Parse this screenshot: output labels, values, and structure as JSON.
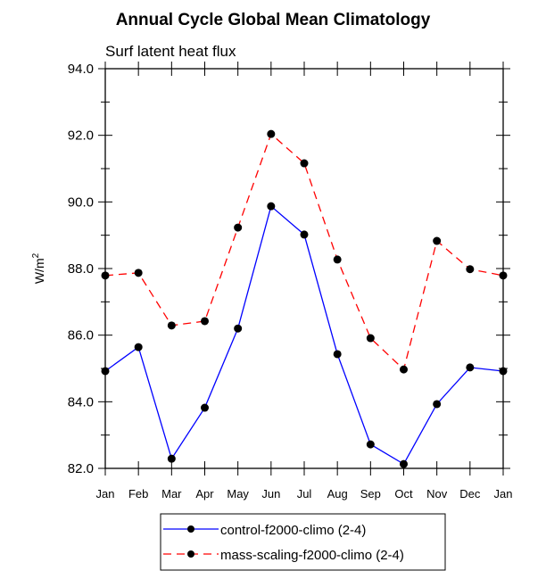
{
  "chart_data": {
    "type": "line",
    "title": "Annual Cycle Global Mean Climatology",
    "subtitle": "Surf latent heat flux",
    "xlabel": "",
    "ylabel": "W/m",
    "ylabel_superscript": "2",
    "categories": [
      "Jan",
      "Feb",
      "Mar",
      "Apr",
      "May",
      "Jun",
      "Jul",
      "Aug",
      "Sep",
      "Oct",
      "Nov",
      "Dec",
      "Jan"
    ],
    "ylim": [
      82.0,
      94.0
    ],
    "yticks": [
      "82.0",
      "84.0",
      "86.0",
      "88.0",
      "90.0",
      "92.0",
      "94.0"
    ],
    "ytick_values": [
      82,
      84,
      86,
      88,
      90,
      92,
      94
    ],
    "grid": false,
    "legend_position": "bottom-center",
    "series": [
      {
        "name": "control-f2000-climo (2-4)",
        "color": "#0000ff",
        "linestyle": "solid",
        "marker": "circle",
        "values": [
          84.92,
          85.64,
          82.29,
          83.82,
          86.2,
          89.87,
          89.02,
          85.43,
          82.72,
          82.13,
          83.93,
          85.03,
          84.92
        ]
      },
      {
        "name": "mass-scaling-f2000-climo (2-4)",
        "color": "#ff0000",
        "linestyle": "dashed",
        "marker": "circle",
        "values": [
          87.79,
          87.87,
          86.29,
          86.42,
          89.23,
          92.04,
          91.16,
          88.27,
          85.91,
          84.97,
          88.83,
          87.98,
          87.79
        ]
      }
    ]
  }
}
